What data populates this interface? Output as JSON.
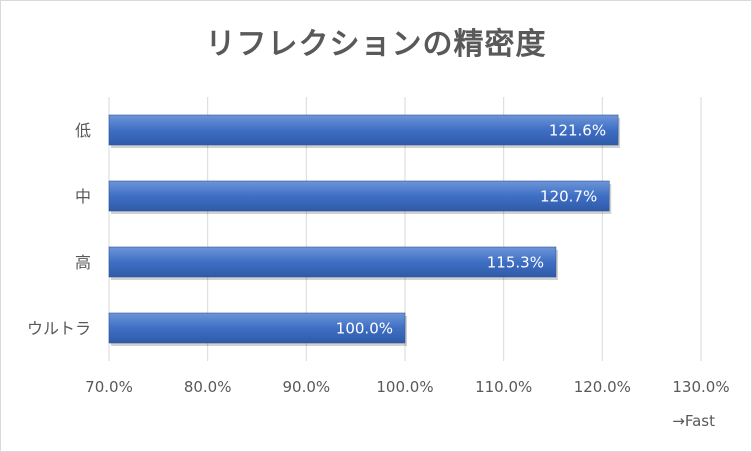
{
  "chart_data": {
    "type": "bar",
    "orientation": "horizontal",
    "title": "リフレクションの精密度",
    "categories": [
      "低",
      "中",
      "高",
      "ウルトラ"
    ],
    "values": [
      121.6,
      120.7,
      115.3,
      100.0
    ],
    "data_labels": [
      "121.6%",
      "120.7%",
      "115.3%",
      "100.0%"
    ],
    "xlim": [
      70,
      130
    ],
    "xticks": [
      70,
      80,
      90,
      100,
      110,
      120,
      130
    ],
    "xtick_labels": [
      "70.0%",
      "80.0%",
      "90.0%",
      "100.0%",
      "110.0%",
      "120.0%",
      "130.0%"
    ],
    "annotation": "→Fast",
    "grid": "vertical",
    "legend": "none",
    "bar_color": "#4472c4"
  }
}
